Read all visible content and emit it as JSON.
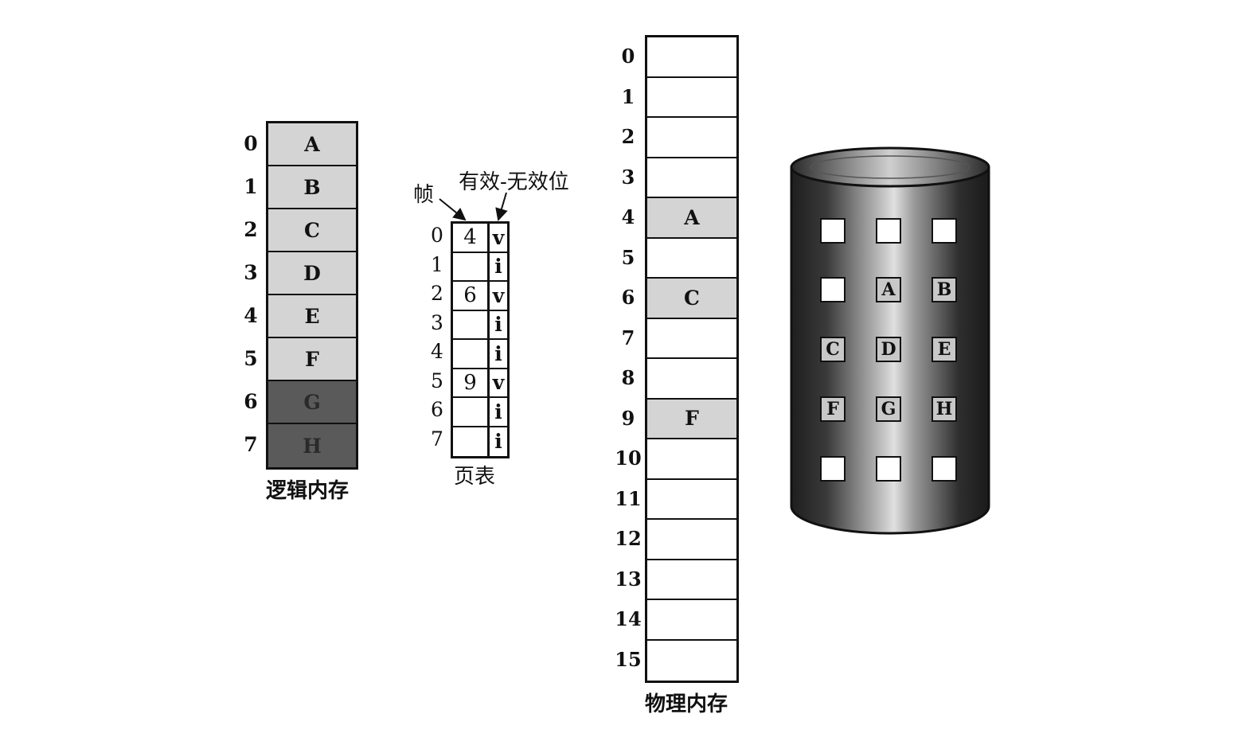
{
  "colors": {
    "light_fill": "#d4d4d4",
    "dark_fill": "#5a5a5a",
    "stroke": "#111111",
    "disk_dark": "#1e1e1e",
    "disk_light": "#d8d8d8"
  },
  "logical_memory": {
    "caption": "逻辑内存",
    "pages": [
      {
        "index": "0",
        "label": "A",
        "shade": "light"
      },
      {
        "index": "1",
        "label": "B",
        "shade": "light"
      },
      {
        "index": "2",
        "label": "C",
        "shade": "light"
      },
      {
        "index": "3",
        "label": "D",
        "shade": "light"
      },
      {
        "index": "4",
        "label": "E",
        "shade": "light"
      },
      {
        "index": "5",
        "label": "F",
        "shade": "light"
      },
      {
        "index": "6",
        "label": "G",
        "shade": "dark"
      },
      {
        "index": "7",
        "label": "H",
        "shade": "dark"
      }
    ]
  },
  "page_table": {
    "caption": "页表",
    "frame_label": "帧",
    "valid_bit_label": "有效-无效位",
    "rows": [
      {
        "index": "0",
        "frame": "4",
        "bit": "v"
      },
      {
        "index": "1",
        "frame": "",
        "bit": "i"
      },
      {
        "index": "2",
        "frame": "6",
        "bit": "v"
      },
      {
        "index": "3",
        "frame": "",
        "bit": "i"
      },
      {
        "index": "4",
        "frame": "",
        "bit": "i"
      },
      {
        "index": "5",
        "frame": "9",
        "bit": "v"
      },
      {
        "index": "6",
        "frame": "",
        "bit": "i"
      },
      {
        "index": "7",
        "frame": "",
        "bit": "i"
      }
    ]
  },
  "physical_memory": {
    "caption": "物理内存",
    "frames": [
      {
        "index": "0",
        "label": ""
      },
      {
        "index": "1",
        "label": ""
      },
      {
        "index": "2",
        "label": ""
      },
      {
        "index": "3",
        "label": ""
      },
      {
        "index": "4",
        "label": "A"
      },
      {
        "index": "5",
        "label": ""
      },
      {
        "index": "6",
        "label": "C"
      },
      {
        "index": "7",
        "label": ""
      },
      {
        "index": "8",
        "label": ""
      },
      {
        "index": "9",
        "label": "F"
      },
      {
        "index": "10",
        "label": ""
      },
      {
        "index": "11",
        "label": ""
      },
      {
        "index": "12",
        "label": ""
      },
      {
        "index": "13",
        "label": ""
      },
      {
        "index": "14",
        "label": ""
      },
      {
        "index": "15",
        "label": ""
      }
    ]
  },
  "disk": {
    "slots": [
      [
        "",
        "",
        ""
      ],
      [
        "",
        "A",
        "B"
      ],
      [
        "C",
        "D",
        "E"
      ],
      [
        "F",
        "G",
        "H"
      ],
      [
        "",
        "",
        ""
      ]
    ]
  }
}
